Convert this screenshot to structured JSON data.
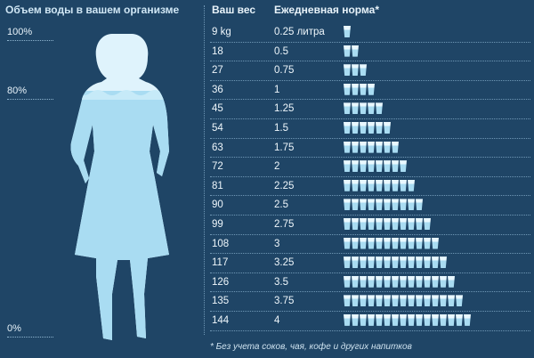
{
  "left_panel": {
    "title": "Объем воды в вашем организме",
    "levels": [
      "100%",
      "80%",
      "0%"
    ]
  },
  "table": {
    "header_weight": "Ваш вес",
    "header_norm": "Ежедневная норма*",
    "rows": [
      {
        "weight": "9 kg",
        "norm": "0.25 литра",
        "cups": 1
      },
      {
        "weight": "18",
        "norm": "0.5",
        "cups": 2
      },
      {
        "weight": "27",
        "norm": "0.75",
        "cups": 3
      },
      {
        "weight": "36",
        "norm": "1",
        "cups": 4
      },
      {
        "weight": "45",
        "norm": "1.25",
        "cups": 5
      },
      {
        "weight": "54",
        "norm": "1.5",
        "cups": 6
      },
      {
        "weight": "63",
        "norm": "1.75",
        "cups": 7
      },
      {
        "weight": "72",
        "norm": "2",
        "cups": 8
      },
      {
        "weight": "81",
        "norm": "2.25",
        "cups": 9
      },
      {
        "weight": "90",
        "norm": "2.5",
        "cups": 10
      },
      {
        "weight": "99",
        "norm": "2.75",
        "cups": 11
      },
      {
        "weight": "108",
        "norm": "3",
        "cups": 12
      },
      {
        "weight": "117",
        "norm": "3.25",
        "cups": 13
      },
      {
        "weight": "126",
        "norm": "3.5",
        "cups": 14
      },
      {
        "weight": "135",
        "norm": "3.75",
        "cups": 15
      },
      {
        "weight": "144",
        "norm": "4",
        "cups": 16
      }
    ]
  },
  "footnote": "* Без учета соков, чая, кофе и других напитков",
  "colors": {
    "background": "#1f4566",
    "water": "#a9dcf2",
    "silhouette": "#dff3fc"
  }
}
